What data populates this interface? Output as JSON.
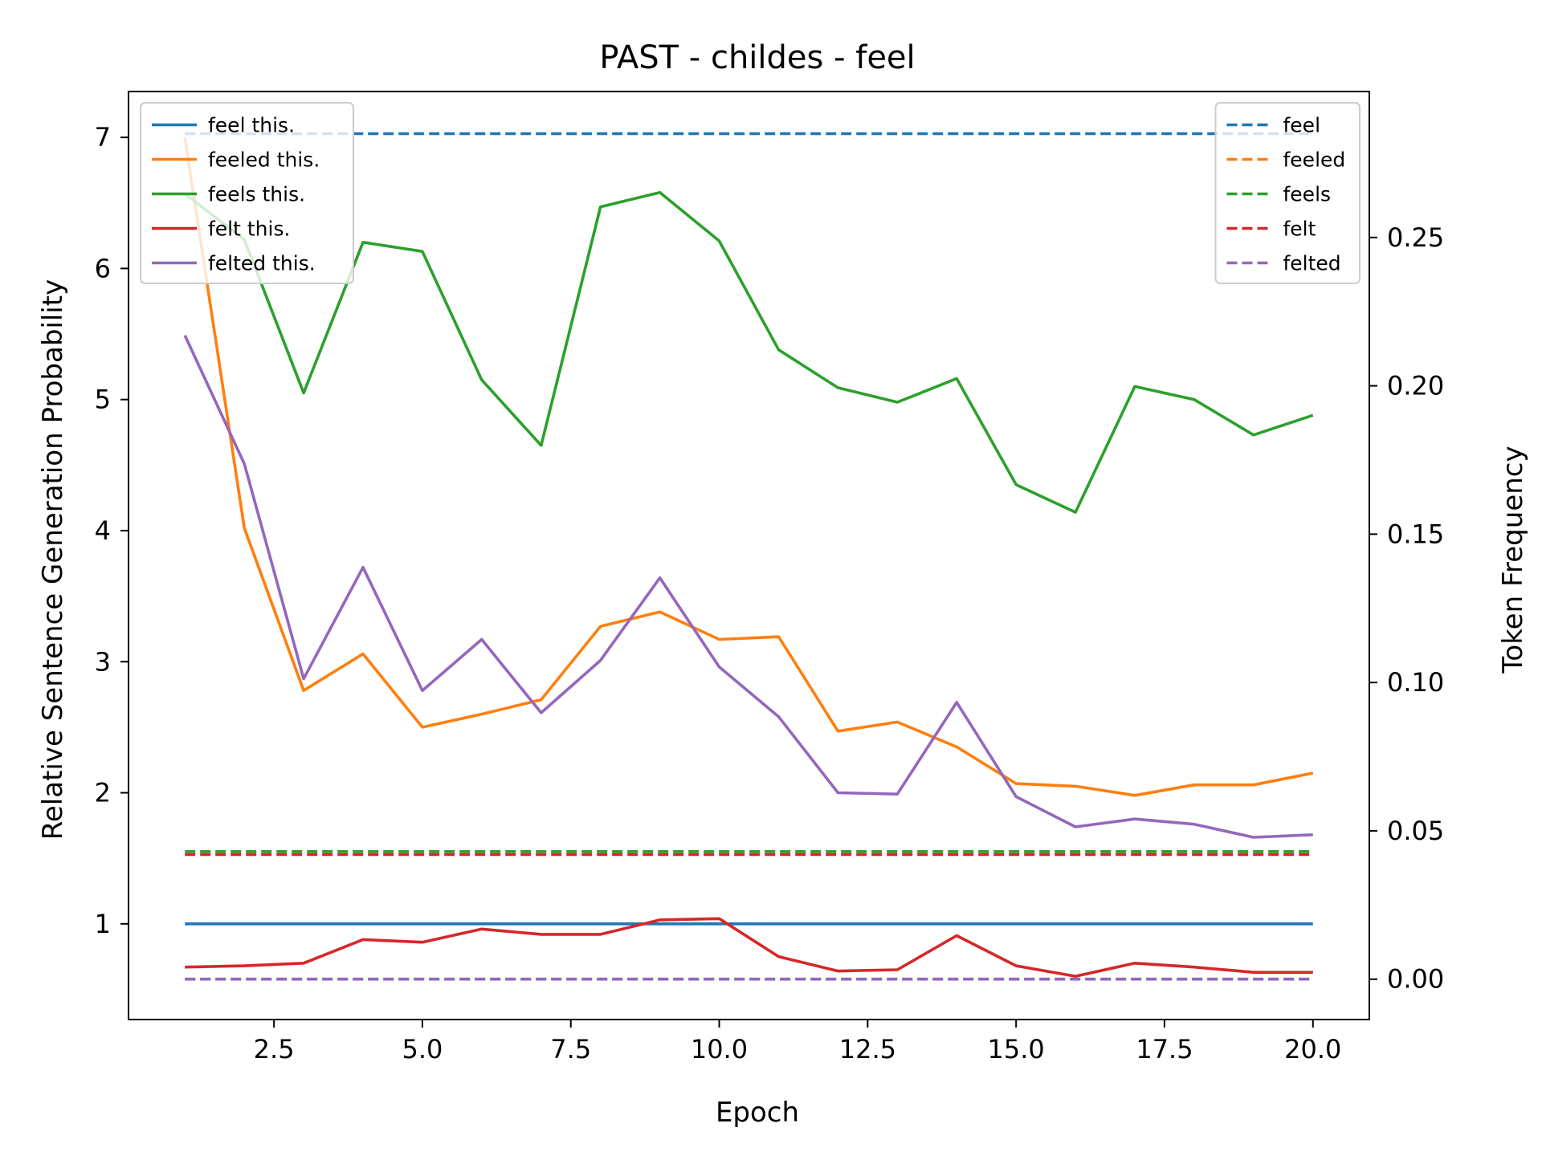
{
  "chart_data": {
    "type": "line",
    "title": "PAST - childes - feel",
    "xlabel": "Epoch",
    "ylabel": "Relative Sentence Generation Probability",
    "y2label": "Token Frequency",
    "xlim": [
      0.05,
      20.95
    ],
    "ylim": [
      0.27,
      7.35
    ],
    "y2lim": [
      -0.0136,
      0.2992
    ],
    "xticks": [
      2.5,
      5.0,
      7.5,
      10.0,
      12.5,
      15.0,
      17.5,
      20.0
    ],
    "xtick_labels": [
      "2.5",
      "5.0",
      "7.5",
      "10.0",
      "12.5",
      "15.0",
      "17.5",
      "20.0"
    ],
    "yticks": [
      1,
      2,
      3,
      4,
      5,
      6,
      7
    ],
    "ytick_labels": [
      "1",
      "2",
      "3",
      "4",
      "5",
      "6",
      "7"
    ],
    "y2ticks": [
      0.0,
      0.05,
      0.1,
      0.15,
      0.2,
      0.25
    ],
    "y2tick_labels": [
      "0.00",
      "0.05",
      "0.10",
      "0.15",
      "0.20",
      "0.25"
    ],
    "grid": false,
    "x": [
      1,
      2,
      3,
      4,
      5,
      6,
      7,
      8,
      9,
      10,
      11,
      12,
      13,
      14,
      15,
      16,
      17,
      18,
      19,
      20
    ],
    "series": [
      {
        "name": "feel this.",
        "axis": "left",
        "style": "solid",
        "color": "#1f77b4",
        "values": [
          1.0,
          1.0,
          1.0,
          1.0,
          1.0,
          1.0,
          1.0,
          1.0,
          1.0,
          1.0,
          1.0,
          1.0,
          1.0,
          1.0,
          1.0,
          1.0,
          1.0,
          1.0,
          1.0,
          1.0
        ]
      },
      {
        "name": "feeled this.",
        "axis": "left",
        "style": "solid",
        "color": "#ff7f0e",
        "values": [
          7.0,
          4.02,
          2.78,
          3.06,
          2.5,
          2.6,
          2.71,
          3.27,
          3.38,
          3.17,
          3.19,
          2.47,
          2.54,
          2.35,
          2.07,
          2.05,
          1.98,
          2.06,
          2.06,
          2.15
        ]
      },
      {
        "name": "feels this.",
        "axis": "left",
        "style": "solid",
        "color": "#2ca02c",
        "values": [
          6.57,
          6.22,
          5.05,
          6.2,
          6.13,
          5.15,
          4.65,
          6.47,
          6.58,
          6.21,
          5.38,
          5.09,
          4.98,
          5.16,
          4.35,
          4.14,
          5.1,
          5.0,
          4.73,
          4.88
        ]
      },
      {
        "name": "felt this.",
        "axis": "left",
        "style": "solid",
        "color": "#d62728",
        "values": [
          0.67,
          0.68,
          0.7,
          0.88,
          0.86,
          0.96,
          0.92,
          0.92,
          1.03,
          1.04,
          0.75,
          0.64,
          0.65,
          0.91,
          0.68,
          0.6,
          0.7,
          0.67,
          0.63,
          0.63
        ]
      },
      {
        "name": "felted this.",
        "axis": "left",
        "style": "solid",
        "color": "#9467bd",
        "values": [
          5.49,
          4.51,
          2.87,
          3.72,
          2.78,
          3.17,
          2.61,
          3.01,
          3.64,
          2.96,
          2.58,
          2.0,
          1.99,
          2.69,
          1.97,
          1.74,
          1.8,
          1.76,
          1.66,
          1.68
        ]
      },
      {
        "name": "feel",
        "axis": "right",
        "style": "dashed",
        "color": "#1f77b4",
        "values": [
          0.285,
          0.285,
          0.285,
          0.285,
          0.285,
          0.285,
          0.285,
          0.285,
          0.285,
          0.285,
          0.285,
          0.285,
          0.285,
          0.285,
          0.285,
          0.285,
          0.285,
          0.285,
          0.285,
          0.285
        ]
      },
      {
        "name": "feeled",
        "axis": "right",
        "style": "dashed",
        "color": "#ff7f0e",
        "values": [
          0.0,
          0.0,
          0.0,
          0.0,
          0.0,
          0.0,
          0.0,
          0.0,
          0.0,
          0.0,
          0.0,
          0.0,
          0.0,
          0.0,
          0.0,
          0.0,
          0.0,
          0.0,
          0.0,
          0.0
        ]
      },
      {
        "name": "feels",
        "axis": "right",
        "style": "dashed",
        "color": "#2ca02c",
        "values": [
          0.043,
          0.043,
          0.043,
          0.043,
          0.043,
          0.043,
          0.043,
          0.043,
          0.043,
          0.043,
          0.043,
          0.043,
          0.043,
          0.043,
          0.043,
          0.043,
          0.043,
          0.043,
          0.043,
          0.043
        ]
      },
      {
        "name": "felt",
        "axis": "right",
        "style": "dashed",
        "color": "#d62728",
        "values": [
          0.042,
          0.042,
          0.042,
          0.042,
          0.042,
          0.042,
          0.042,
          0.042,
          0.042,
          0.042,
          0.042,
          0.042,
          0.042,
          0.042,
          0.042,
          0.042,
          0.042,
          0.042,
          0.042,
          0.042
        ]
      },
      {
        "name": "felted",
        "axis": "right",
        "style": "dashed",
        "color": "#9467bd",
        "values": [
          0.0,
          0.0,
          0.0,
          0.0,
          0.0,
          0.0,
          0.0,
          0.0,
          0.0,
          0.0,
          0.0,
          0.0,
          0.0,
          0.0,
          0.0,
          0.0,
          0.0,
          0.0,
          0.0,
          0.0
        ]
      }
    ],
    "legends": [
      {
        "placement": "top-left",
        "entries": [
          "feel this.",
          "feeled this.",
          "feels this.",
          "felt this.",
          "felted this."
        ]
      },
      {
        "placement": "top-right",
        "entries": [
          "feel",
          "feeled",
          "feels",
          "felt",
          "felted"
        ]
      }
    ]
  }
}
